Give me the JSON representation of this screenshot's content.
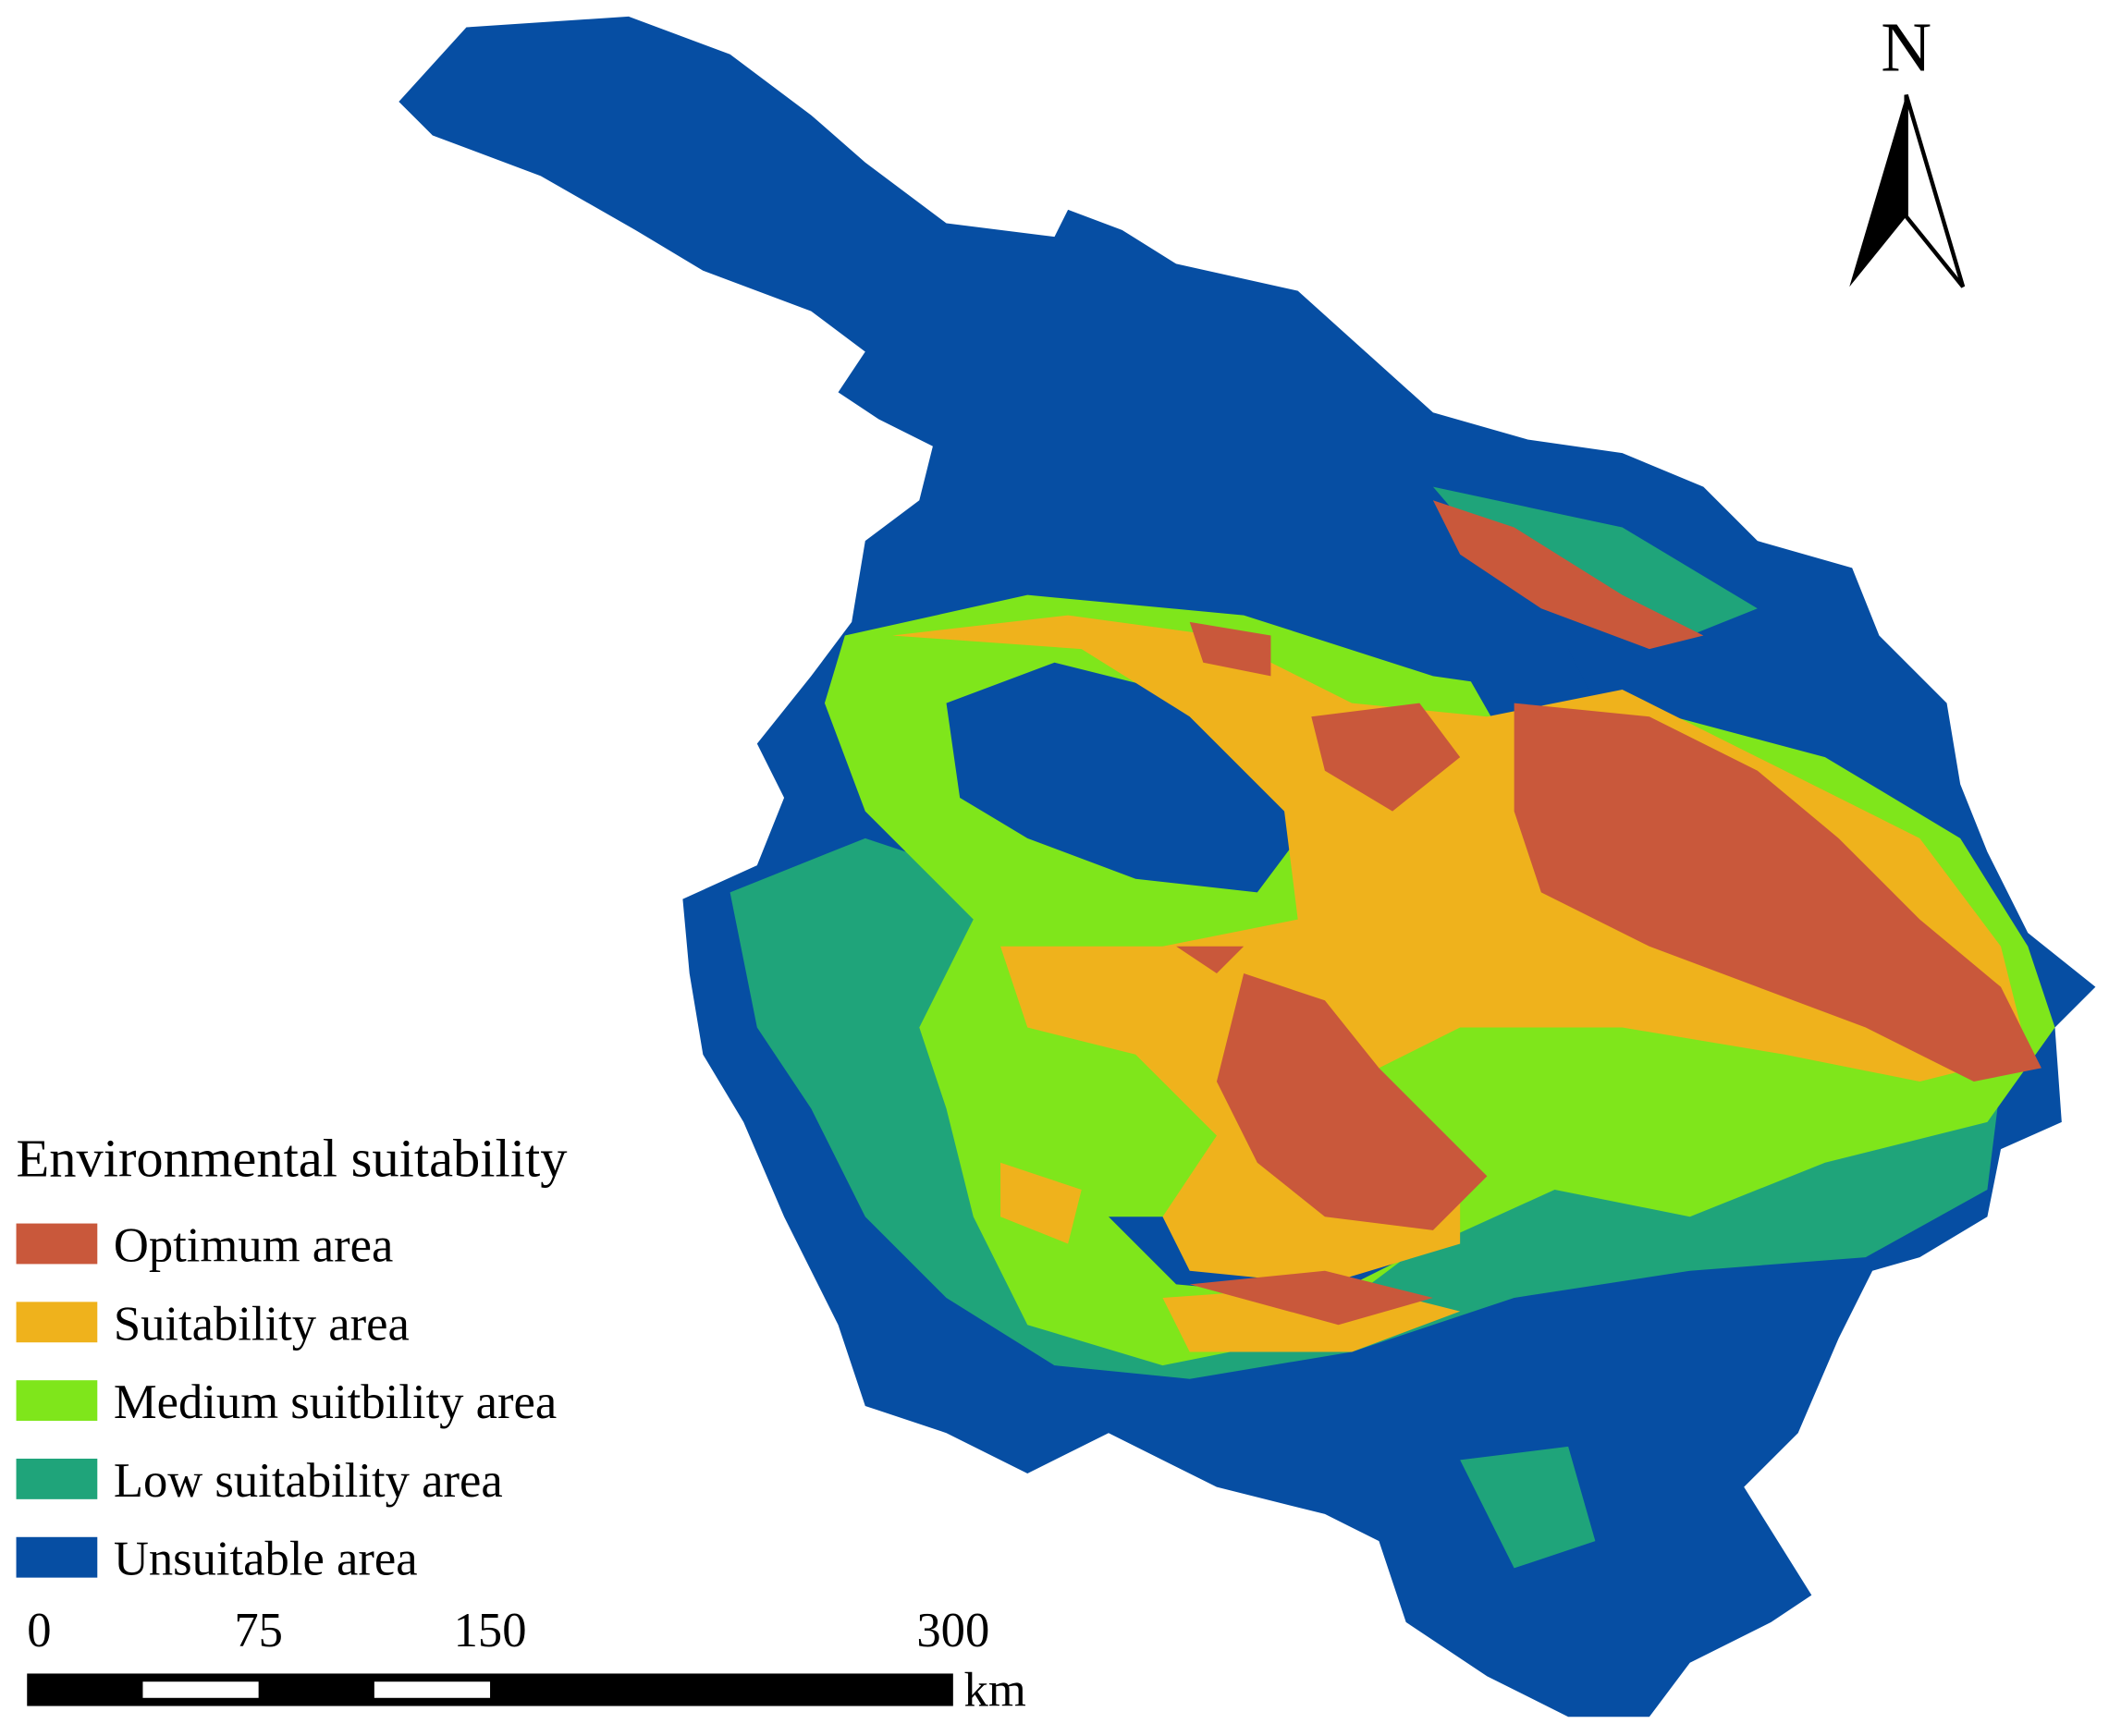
{
  "map": {
    "north": "N",
    "legend": {
      "title": "Environmental suitability",
      "items": [
        {
          "label": "Optimum area",
          "color": "#c9583b"
        },
        {
          "label": "Suitability area",
          "color": "#efb21c"
        },
        {
          "label": "Medium suitbility area",
          "color": "#7fe61b"
        },
        {
          "label": "Low suitability area",
          "color": "#1fa47a"
        },
        {
          "label": "Unsuitable area",
          "color": "#064ea3"
        }
      ]
    },
    "scale_bar": {
      "ticks": [
        0,
        75,
        150,
        300
      ],
      "unit": "km"
    }
  }
}
